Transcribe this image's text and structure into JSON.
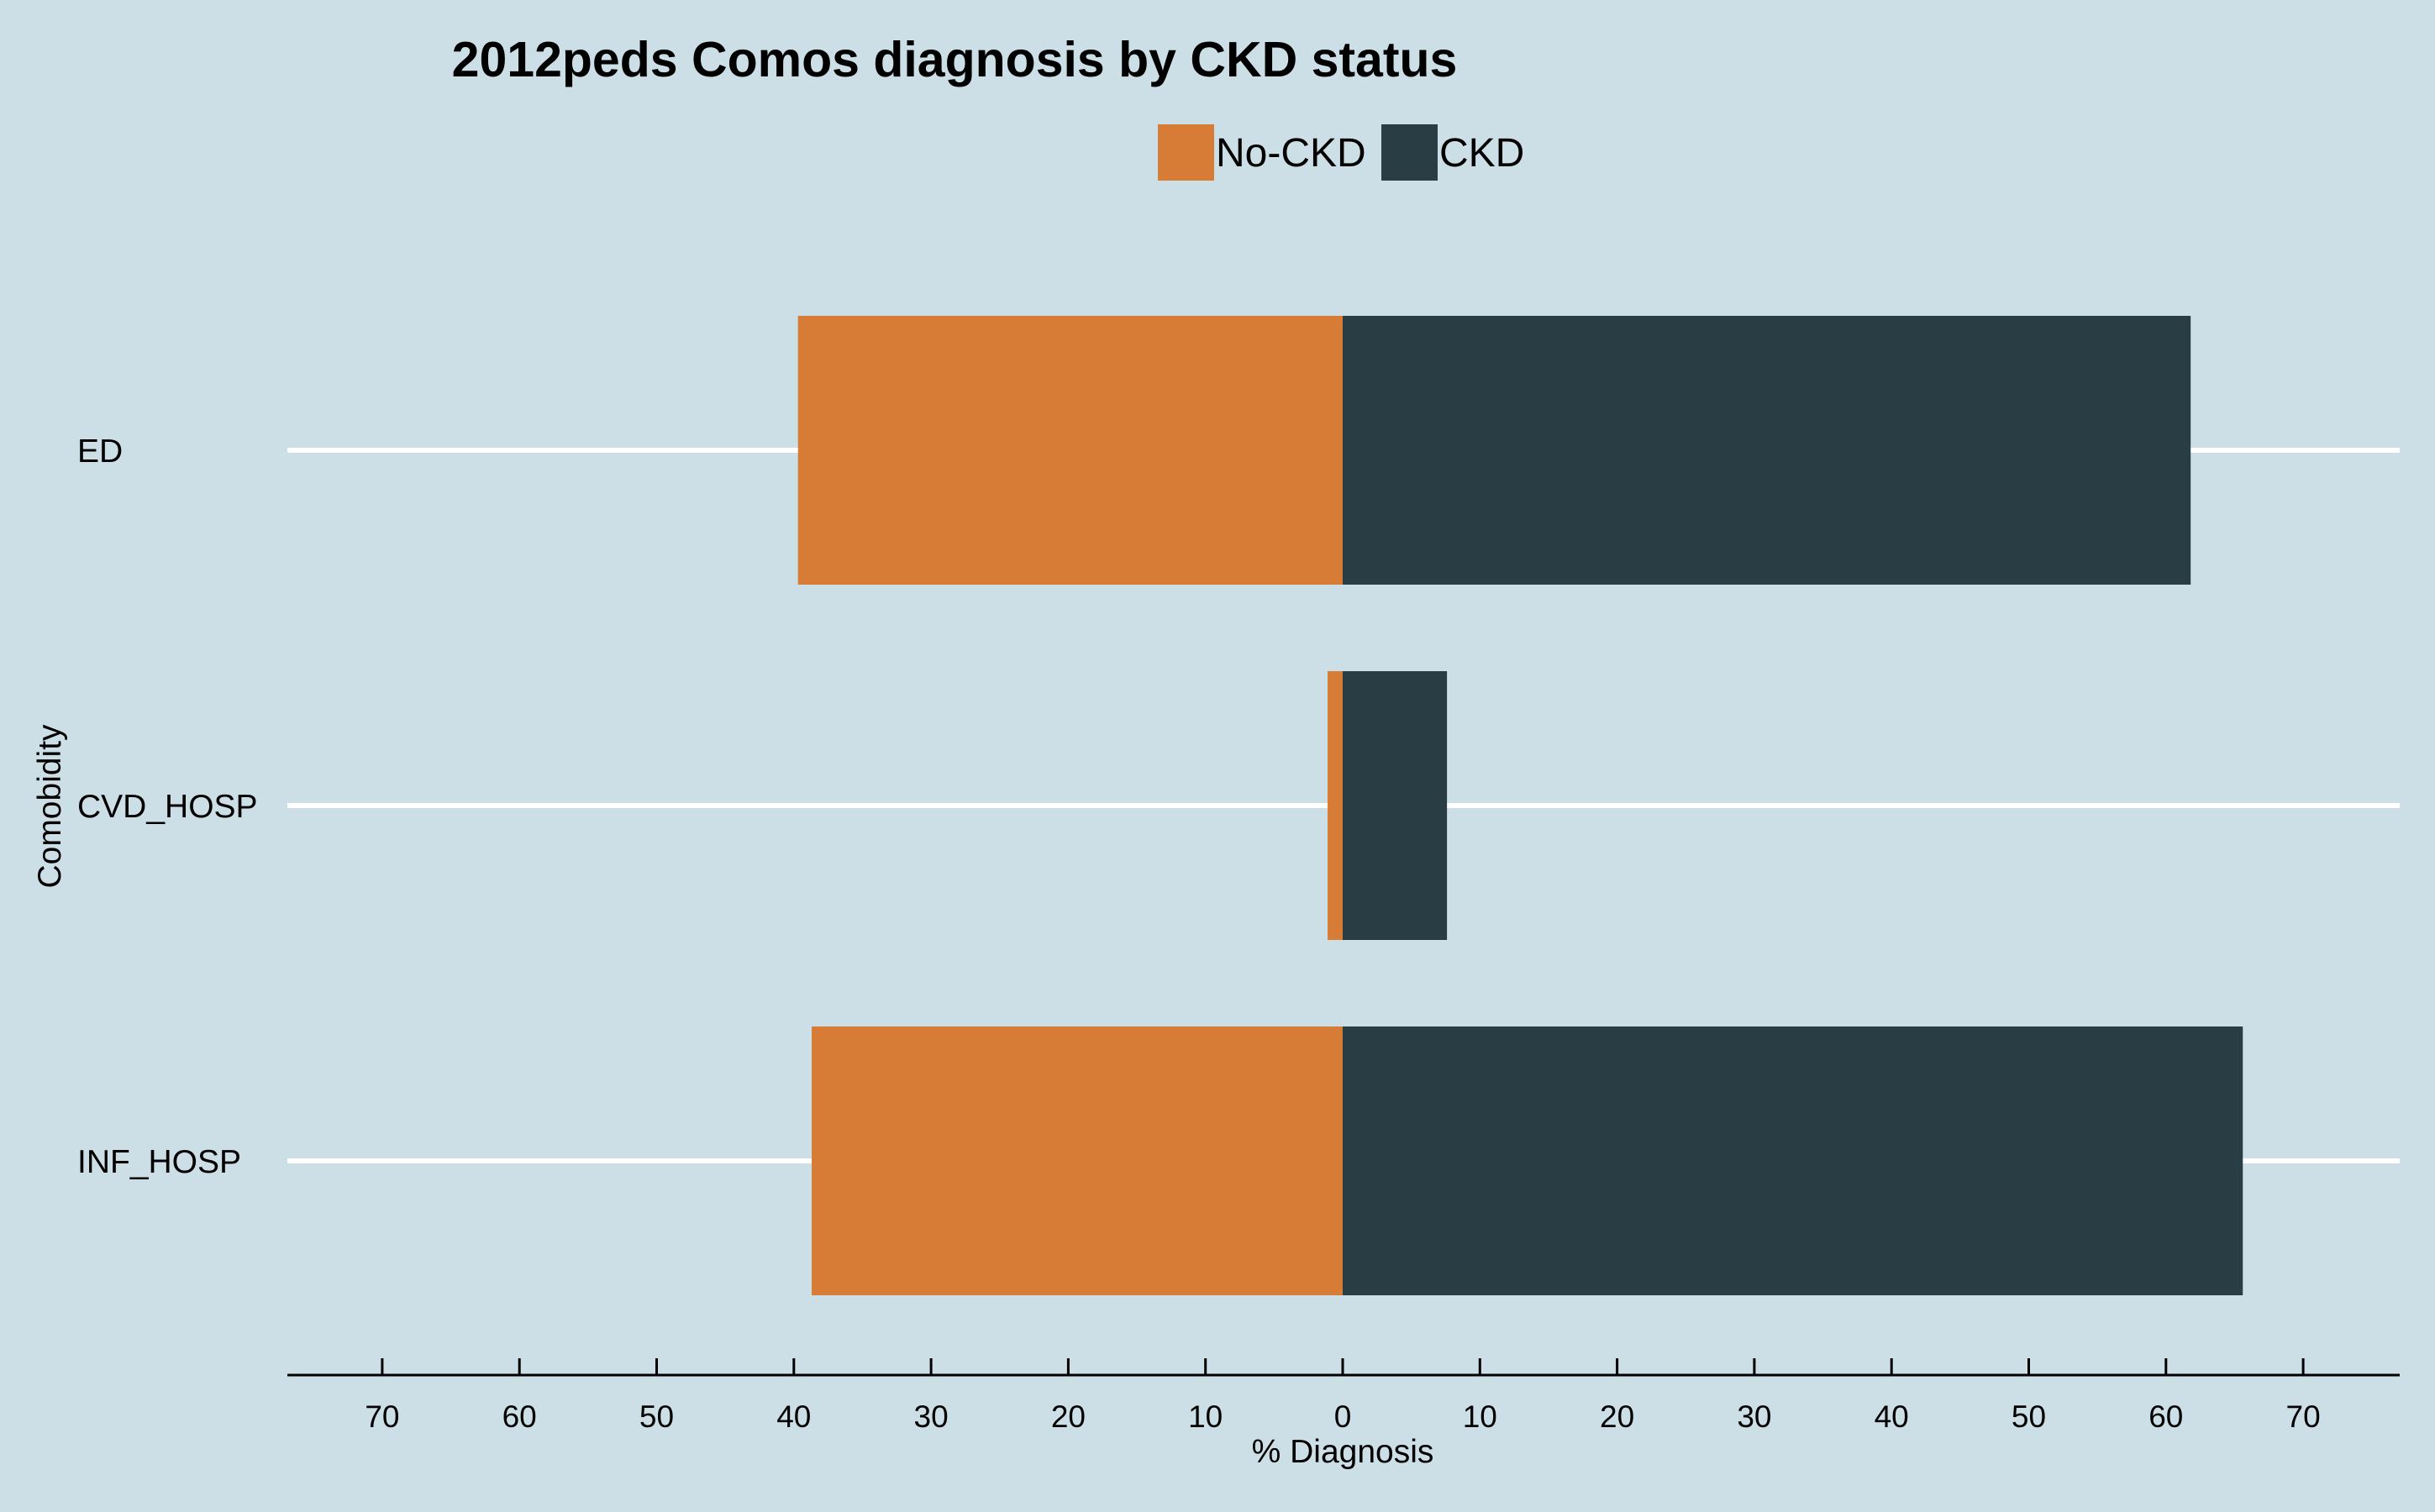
{
  "chart_data": {
    "type": "bar",
    "orientation": "horizontal-diverging",
    "title": "2012peds Comos diagnosis by CKD status",
    "xlabel": "% Diagnosis",
    "ylabel": "Comobidity",
    "categories": [
      "ED",
      "CVD_HOSP",
      "INF_HOSP"
    ],
    "series": [
      {
        "name": "No-CKD",
        "color": "#d67c36",
        "direction": "left",
        "values": [
          39.7,
          1.1,
          38.7
        ]
      },
      {
        "name": "CKD",
        "color": "#293d44",
        "direction": "right",
        "values": [
          61.8,
          7.6,
          65.6
        ]
      }
    ],
    "xlim": [
      -77,
      77
    ],
    "x_ticks": [
      -70,
      -60,
      -50,
      -40,
      -30,
      -20,
      -10,
      0,
      10,
      20,
      30,
      40,
      50,
      60,
      70
    ],
    "x_tick_labels": [
      "70",
      "60",
      "50",
      "40",
      "30",
      "20",
      "10",
      "0",
      "10",
      "20",
      "30",
      "40",
      "50",
      "60",
      "70"
    ],
    "legend_position": "top-center",
    "grid": "horizontal gridlines at categories",
    "background_color": "#cddfe6",
    "gridline_color": "#ffffff"
  }
}
